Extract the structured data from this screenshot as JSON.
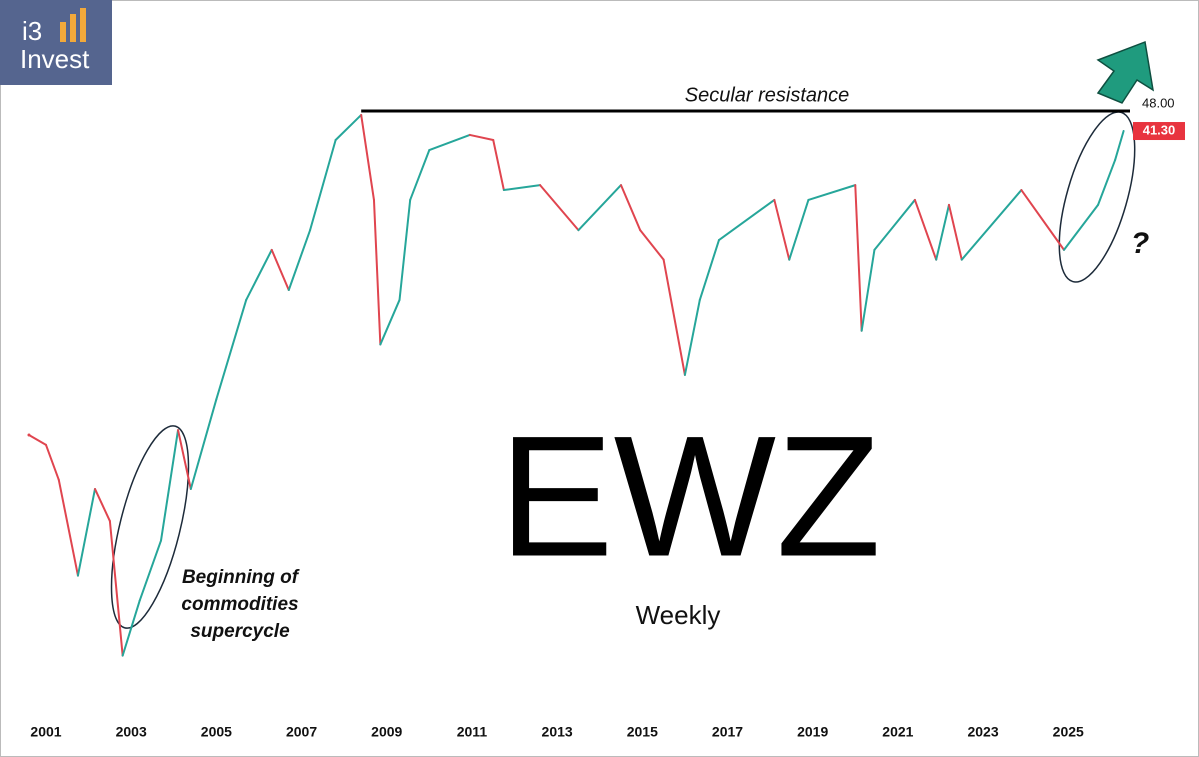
{
  "chart_data": {
    "type": "line",
    "logo": [
      "i3",
      "Invest"
    ],
    "title": "EWZ",
    "subtitle": "Weekly",
    "annotations": {
      "resistance": "Secular resistance",
      "supercycle": [
        "Beginning of",
        "commodities",
        "supercycle"
      ],
      "question": "?"
    },
    "resistance_level": {
      "value": 48,
      "label": "48.00",
      "from_x": 2008.4
    },
    "last_price": {
      "value": 41.3,
      "label": "41.30"
    },
    "log_scale": true,
    "xlim": [
      1999.92,
      2026.45
    ],
    "ylim": [
      0.573,
      110.6
    ],
    "xticks": [
      2001,
      2003,
      2005,
      2007,
      2009,
      2011,
      2013,
      2015,
      2017,
      2019,
      2021,
      2023,
      2025
    ],
    "series": [
      {
        "name": "EWZ",
        "up_color": "#26a69a",
        "down_color": "#e0454f",
        "x": [
          2000.6,
          2001.0,
          2001.3,
          2001.75,
          2002.15,
          2002.5,
          2002.8,
          2003.2,
          2003.7,
          2004.1,
          2004.4,
          2005.0,
          2005.7,
          2006.3,
          2006.7,
          2007.2,
          2007.8,
          2008.4,
          2008.7,
          2008.85,
          2009.3,
          2009.55,
          2010.0,
          2010.95,
          2011.5,
          2011.75,
          2012.6,
          2013.5,
          2014.5,
          2014.95,
          2015.5,
          2016.0,
          2016.35,
          2016.8,
          2018.1,
          2018.45,
          2018.9,
          2020.0,
          2020.15,
          2020.45,
          2021.4,
          2021.9,
          2022.2,
          2022.5,
          2023.9,
          2024.9,
          2025.7,
          2026.1,
          2026.3
        ],
        "values": [
          4.2,
          3.9,
          3.0,
          1.46,
          2.8,
          2.2,
          0.8,
          1.21,
          1.9,
          4.36,
          2.8,
          5.5,
          11.6,
          16.9,
          12.5,
          19.6,
          38.6,
          46.6,
          24.6,
          8.3,
          11.6,
          24.6,
          35.8,
          40.1,
          38.6,
          26.5,
          27.5,
          19.6,
          27.5,
          19.6,
          15.7,
          6.6,
          11.6,
          18.2,
          24.6,
          15.7,
          24.6,
          27.5,
          9.2,
          16.9,
          24.6,
          15.7,
          23.7,
          15.7,
          26.5,
          16.9,
          23.7,
          33.2,
          41.3
        ]
      }
    ]
  }
}
